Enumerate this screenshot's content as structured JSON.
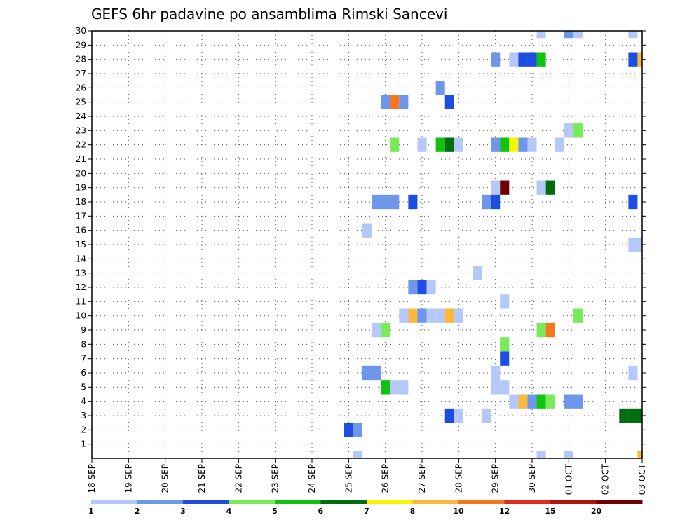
{
  "chart_data": {
    "type": "heatmap",
    "title": "GEFS 6hr padavine po ansamblima Rimski Sancevi",
    "xlabel": "",
    "ylabel": "",
    "x_ticks": [
      "18 SEP",
      "19 SEP",
      "20 SEP",
      "21 SEP",
      "22 SEP",
      "23 SEP",
      "24 SEP",
      "25 SEP",
      "26 SEP",
      "27 SEP",
      "28 SEP",
      "29 SEP",
      "30 SEP",
      "01 OCT",
      "02 OCT",
      "03 OCT"
    ],
    "x_range_hours": [
      0,
      360
    ],
    "x_step_hours": 6,
    "y_ticks": [
      1,
      2,
      3,
      4,
      5,
      6,
      7,
      8,
      9,
      10,
      11,
      12,
      13,
      14,
      15,
      16,
      17,
      18,
      19,
      20,
      21,
      22,
      23,
      24,
      25,
      26,
      27,
      28,
      29,
      30
    ],
    "y_range": [
      0,
      30
    ],
    "grid": true,
    "colorbar": {
      "labels": [
        "1",
        "2",
        "3",
        "4",
        "5",
        "6",
        "7",
        "8",
        "10",
        "12",
        "15",
        "20"
      ],
      "colors": [
        "#b4c8fa",
        "#6e96eb",
        "#1e4ee1",
        "#78eb5a",
        "#0fc30f",
        "#006e0f",
        "#f5f500",
        "#fab93c",
        "#f5781e",
        "#dc2d1e",
        "#b4140f",
        "#730000"
      ]
    },
    "cells": [
      {
        "t": 294,
        "m": 30,
        "c": 1
      },
      {
        "t": 312,
        "m": 30,
        "c": 2
      },
      {
        "t": 318,
        "m": 30,
        "c": 1
      },
      {
        "t": 354,
        "m": 30,
        "c": 1
      },
      {
        "t": 264,
        "m": 28,
        "c": 2
      },
      {
        "t": 276,
        "m": 28,
        "c": 1
      },
      {
        "t": 282,
        "m": 28,
        "c": 3
      },
      {
        "t": 288,
        "m": 28,
        "c": 3
      },
      {
        "t": 294,
        "m": 28,
        "c": 5
      },
      {
        "t": 354,
        "m": 28,
        "c": 3
      },
      {
        "t": 360,
        "m": 28,
        "c": 8
      },
      {
        "t": 228,
        "m": 26,
        "c": 2
      },
      {
        "t": 192,
        "m": 25,
        "c": 2
      },
      {
        "t": 198,
        "m": 25,
        "c": 9
      },
      {
        "t": 204,
        "m": 25,
        "c": 2
      },
      {
        "t": 234,
        "m": 25,
        "c": 3
      },
      {
        "t": 312,
        "m": 23,
        "c": 1
      },
      {
        "t": 318,
        "m": 23,
        "c": 4
      },
      {
        "t": 198,
        "m": 22,
        "c": 4
      },
      {
        "t": 216,
        "m": 22,
        "c": 1
      },
      {
        "t": 228,
        "m": 22,
        "c": 5
      },
      {
        "t": 234,
        "m": 22,
        "c": 6
      },
      {
        "t": 240,
        "m": 22,
        "c": 1
      },
      {
        "t": 264,
        "m": 22,
        "c": 2
      },
      {
        "t": 270,
        "m": 22,
        "c": 5
      },
      {
        "t": 276,
        "m": 22,
        "c": 7
      },
      {
        "t": 282,
        "m": 22,
        "c": 2
      },
      {
        "t": 288,
        "m": 22,
        "c": 1
      },
      {
        "t": 306,
        "m": 22,
        "c": 1
      },
      {
        "t": 264,
        "m": 19,
        "c": 1
      },
      {
        "t": 270,
        "m": 19,
        "c": 12
      },
      {
        "t": 294,
        "m": 19,
        "c": 1
      },
      {
        "t": 300,
        "m": 19,
        "c": 6
      },
      {
        "t": 186,
        "m": 18,
        "c": 2
      },
      {
        "t": 192,
        "m": 18,
        "c": 2
      },
      {
        "t": 198,
        "m": 18,
        "c": 2
      },
      {
        "t": 210,
        "m": 18,
        "c": 3
      },
      {
        "t": 258,
        "m": 18,
        "c": 2
      },
      {
        "t": 264,
        "m": 18,
        "c": 3
      },
      {
        "t": 354,
        "m": 18,
        "c": 3
      },
      {
        "t": 180,
        "m": 16,
        "c": 1
      },
      {
        "t": 354,
        "m": 15,
        "c": 1
      },
      {
        "t": 360,
        "m": 15,
        "c": 1
      },
      {
        "t": 252,
        "m": 13,
        "c": 1
      },
      {
        "t": 210,
        "m": 12,
        "c": 2
      },
      {
        "t": 216,
        "m": 12,
        "c": 3
      },
      {
        "t": 222,
        "m": 12,
        "c": 1
      },
      {
        "t": 270,
        "m": 11,
        "c": 1
      },
      {
        "t": 204,
        "m": 10,
        "c": 1
      },
      {
        "t": 210,
        "m": 10,
        "c": 8
      },
      {
        "t": 216,
        "m": 10,
        "c": 2
      },
      {
        "t": 222,
        "m": 10,
        "c": 1
      },
      {
        "t": 228,
        "m": 10,
        "c": 1
      },
      {
        "t": 234,
        "m": 10,
        "c": 8
      },
      {
        "t": 240,
        "m": 10,
        "c": 1
      },
      {
        "t": 318,
        "m": 10,
        "c": 4
      },
      {
        "t": 186,
        "m": 9,
        "c": 1
      },
      {
        "t": 192,
        "m": 9,
        "c": 4
      },
      {
        "t": 294,
        "m": 9,
        "c": 4
      },
      {
        "t": 300,
        "m": 9,
        "c": 9
      },
      {
        "t": 270,
        "m": 8,
        "c": 4
      },
      {
        "t": 270,
        "m": 7,
        "c": 3
      },
      {
        "t": 180,
        "m": 6,
        "c": 2
      },
      {
        "t": 186,
        "m": 6,
        "c": 2
      },
      {
        "t": 264,
        "m": 6,
        "c": 1
      },
      {
        "t": 354,
        "m": 6,
        "c": 1
      },
      {
        "t": 192,
        "m": 5,
        "c": 5
      },
      {
        "t": 198,
        "m": 5,
        "c": 1
      },
      {
        "t": 204,
        "m": 5,
        "c": 1
      },
      {
        "t": 264,
        "m": 5,
        "c": 1
      },
      {
        "t": 270,
        "m": 5,
        "c": 1
      },
      {
        "t": 276,
        "m": 4,
        "c": 1
      },
      {
        "t": 282,
        "m": 4,
        "c": 8
      },
      {
        "t": 288,
        "m": 4,
        "c": 2
      },
      {
        "t": 294,
        "m": 4,
        "c": 5
      },
      {
        "t": 300,
        "m": 4,
        "c": 4
      },
      {
        "t": 312,
        "m": 4,
        "c": 2
      },
      {
        "t": 318,
        "m": 4,
        "c": 2
      },
      {
        "t": 234,
        "m": 3,
        "c": 3
      },
      {
        "t": 240,
        "m": 3,
        "c": 1
      },
      {
        "t": 258,
        "m": 3,
        "c": 1
      },
      {
        "t": 348,
        "m": 3,
        "c": 6
      },
      {
        "t": 354,
        "m": 3,
        "c": 6
      },
      {
        "t": 360,
        "m": 3,
        "c": 6
      },
      {
        "t": 168,
        "m": 2,
        "c": 3
      },
      {
        "t": 174,
        "m": 2,
        "c": 2
      },
      {
        "t": 174,
        "m": 0,
        "c": 1
      },
      {
        "t": 294,
        "m": 0,
        "c": 1
      },
      {
        "t": 312,
        "m": 0,
        "c": 1
      },
      {
        "t": 360,
        "m": 0,
        "c": 8
      }
    ]
  }
}
